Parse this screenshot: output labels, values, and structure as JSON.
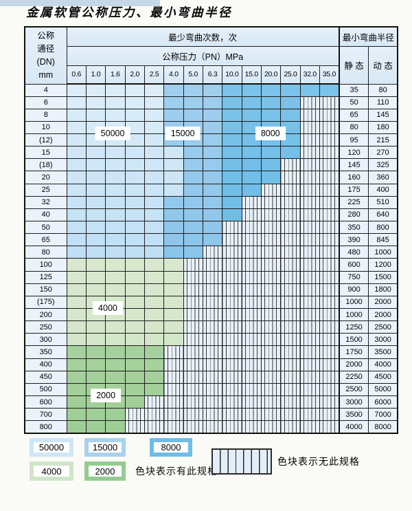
{
  "chart_data": {
    "type": "table",
    "title": "金属软管公称压力、最小弯曲半径",
    "header": {
      "dn_label_lines": [
        "公称",
        "通径",
        "(DN)",
        "mm"
      ],
      "cycles_label": "最少弯曲次数，次",
      "pressure_label": "公称压力（PN）MPa",
      "radius_label": "最小弯曲半径",
      "static_label": "静 态",
      "dynamic_label": "动 态"
    },
    "pressures": [
      "0.6",
      "1.0",
      "1.6",
      "2.0",
      "2.5",
      "4.0",
      "5.0",
      "6.3",
      "10.0",
      "15.0",
      "20.0",
      "25.0",
      "32.0",
      "35.0"
    ],
    "zones": {
      "b1": {
        "cycles": "50000",
        "color": "#cfe6f6"
      },
      "b2": {
        "cycles": "15000",
        "color": "#a7d3ee"
      },
      "b3": {
        "cycles": "8000",
        "color": "#6fbde6"
      },
      "g1": {
        "cycles": "4000",
        "color": "#cfe5c8"
      },
      "g2": {
        "cycles": "2000",
        "color": "#93cc90"
      },
      "x": {
        "cycles": "无此规格",
        "color": "striped"
      }
    },
    "rows": [
      {
        "dn": "4",
        "static": "35",
        "dynamic": "80",
        "cells": [
          "b1",
          "b1",
          "b1",
          "b1",
          "b1",
          "b2",
          "b2",
          "b2",
          "b3",
          "b3",
          "b3",
          "b3",
          "b3",
          "b3"
        ]
      },
      {
        "dn": "6",
        "static": "50",
        "dynamic": "110",
        "cells": [
          "b1",
          "b1",
          "b1",
          "b1",
          "b1",
          "b2",
          "b2",
          "b2",
          "b3",
          "b3",
          "b3",
          "b3",
          "x",
          "x"
        ]
      },
      {
        "dn": "8",
        "static": "65",
        "dynamic": "145",
        "cells": [
          "b1",
          "b1",
          "b1",
          "b1",
          "b1",
          "b2",
          "b2",
          "b2",
          "b3",
          "b3",
          "b3",
          "b3",
          "x",
          "x"
        ]
      },
      {
        "dn": "10",
        "static": "80",
        "dynamic": "180",
        "cells": [
          "b1",
          "b1",
          "b1",
          "b1",
          "b1",
          "b2",
          "b2",
          "b2",
          "b3",
          "b3",
          "b3",
          "b3",
          "x",
          "x"
        ]
      },
      {
        "dn": "(12)",
        "static": "95",
        "dynamic": "215",
        "cells": [
          "b1",
          "b1",
          "b1",
          "b1",
          "b1",
          "b2",
          "b2",
          "b2",
          "b3",
          "b3",
          "b3",
          "b3",
          "x",
          "x"
        ]
      },
      {
        "dn": "15",
        "static": "120",
        "dynamic": "270",
        "cells": [
          "b1",
          "b1",
          "b1",
          "b1",
          "b1",
          "b1",
          "b2",
          "b2",
          "b3",
          "b3",
          "b3",
          "b3",
          "x",
          "x"
        ]
      },
      {
        "dn": "(18)",
        "static": "145",
        "dynamic": "325",
        "cells": [
          "b1",
          "b1",
          "b1",
          "b1",
          "b1",
          "b1",
          "b2",
          "b2",
          "b3",
          "b3",
          "b3",
          "x",
          "x",
          "x"
        ]
      },
      {
        "dn": "20",
        "static": "160",
        "dynamic": "360",
        "cells": [
          "b1",
          "b1",
          "b1",
          "b1",
          "b1",
          "b1",
          "b2",
          "b2",
          "b3",
          "b3",
          "b3",
          "x",
          "x",
          "x"
        ]
      },
      {
        "dn": "25",
        "static": "175",
        "dynamic": "400",
        "cells": [
          "b1",
          "b1",
          "b1",
          "b1",
          "b1",
          "b1",
          "b2",
          "b2",
          "b3",
          "b3",
          "x",
          "x",
          "x",
          "x"
        ]
      },
      {
        "dn": "32",
        "static": "225",
        "dynamic": "510",
        "cells": [
          "b1",
          "b1",
          "b1",
          "b1",
          "b1",
          "b2",
          "b2",
          "b2",
          "b3",
          "x",
          "x",
          "x",
          "x",
          "x"
        ]
      },
      {
        "dn": "40",
        "static": "280",
        "dynamic": "640",
        "cells": [
          "b1",
          "b1",
          "b1",
          "b1",
          "b1",
          "b2",
          "b2",
          "b2",
          "b3",
          "x",
          "x",
          "x",
          "x",
          "x"
        ]
      },
      {
        "dn": "50",
        "static": "350",
        "dynamic": "800",
        "cells": [
          "b1",
          "b1",
          "b1",
          "b1",
          "b1",
          "b2",
          "b2",
          "b2",
          "x",
          "x",
          "x",
          "x",
          "x",
          "x"
        ]
      },
      {
        "dn": "65",
        "static": "390",
        "dynamic": "845",
        "cells": [
          "b1",
          "b1",
          "b1",
          "b1",
          "b1",
          "b2",
          "b2",
          "b2",
          "x",
          "x",
          "x",
          "x",
          "x",
          "x"
        ]
      },
      {
        "dn": "80",
        "static": "480",
        "dynamic": "1000",
        "cells": [
          "b1",
          "b1",
          "b1",
          "b1",
          "b1",
          "b2",
          "b2",
          "x",
          "x",
          "x",
          "x",
          "x",
          "x",
          "x"
        ]
      },
      {
        "dn": "100",
        "static": "600",
        "dynamic": "1200",
        "cells": [
          "g1",
          "g1",
          "g1",
          "g1",
          "g1",
          "g1",
          "x",
          "x",
          "x",
          "x",
          "x",
          "x",
          "x",
          "x"
        ]
      },
      {
        "dn": "125",
        "static": "750",
        "dynamic": "1500",
        "cells": [
          "g1",
          "g1",
          "g1",
          "g1",
          "g1",
          "g1",
          "x",
          "x",
          "x",
          "x",
          "x",
          "x",
          "x",
          "x"
        ]
      },
      {
        "dn": "150",
        "static": "900",
        "dynamic": "1800",
        "cells": [
          "g1",
          "g1",
          "g1",
          "g1",
          "g1",
          "g1",
          "x",
          "x",
          "x",
          "x",
          "x",
          "x",
          "x",
          "x"
        ]
      },
      {
        "dn": "(175)",
        "static": "1000",
        "dynamic": "2000",
        "cells": [
          "g1",
          "g1",
          "g1",
          "g1",
          "g1",
          "g1",
          "x",
          "x",
          "x",
          "x",
          "x",
          "x",
          "x",
          "x"
        ]
      },
      {
        "dn": "200",
        "static": "1000",
        "dynamic": "2000",
        "cells": [
          "g1",
          "g1",
          "g1",
          "g1",
          "g1",
          "g1",
          "x",
          "x",
          "x",
          "x",
          "x",
          "x",
          "x",
          "x"
        ]
      },
      {
        "dn": "250",
        "static": "1250",
        "dynamic": "2500",
        "cells": [
          "g1",
          "g1",
          "g1",
          "g1",
          "g1",
          "g1",
          "x",
          "x",
          "x",
          "x",
          "x",
          "x",
          "x",
          "x"
        ]
      },
      {
        "dn": "300",
        "static": "1500",
        "dynamic": "3000",
        "cells": [
          "g1",
          "g1",
          "g1",
          "g1",
          "g1",
          "g1",
          "x",
          "x",
          "x",
          "x",
          "x",
          "x",
          "x",
          "x"
        ]
      },
      {
        "dn": "350",
        "static": "1750",
        "dynamic": "3500",
        "cells": [
          "g2",
          "g2",
          "g2",
          "g2",
          "g2",
          "x",
          "x",
          "x",
          "x",
          "x",
          "x",
          "x",
          "x",
          "x"
        ]
      },
      {
        "dn": "400",
        "static": "2000",
        "dynamic": "4000",
        "cells": [
          "g2",
          "g2",
          "g2",
          "g2",
          "g2",
          "x",
          "x",
          "x",
          "x",
          "x",
          "x",
          "x",
          "x",
          "x"
        ]
      },
      {
        "dn": "450",
        "static": "2250",
        "dynamic": "4500",
        "cells": [
          "g2",
          "g2",
          "g2",
          "g2",
          "g2",
          "x",
          "x",
          "x",
          "x",
          "x",
          "x",
          "x",
          "x",
          "x"
        ]
      },
      {
        "dn": "500",
        "static": "2500",
        "dynamic": "5000",
        "cells": [
          "g2",
          "g2",
          "g2",
          "g2",
          "g2",
          "x",
          "x",
          "x",
          "x",
          "x",
          "x",
          "x",
          "x",
          "x"
        ]
      },
      {
        "dn": "600",
        "static": "3000",
        "dynamic": "6000",
        "cells": [
          "g2",
          "g2",
          "g2",
          "g2",
          "x",
          "x",
          "x",
          "x",
          "x",
          "x",
          "x",
          "x",
          "x",
          "x"
        ]
      },
      {
        "dn": "700",
        "static": "3500",
        "dynamic": "7000",
        "cells": [
          "g2",
          "g2",
          "g2",
          "x",
          "x",
          "x",
          "x",
          "x",
          "x",
          "x",
          "x",
          "x",
          "x",
          "x"
        ]
      },
      {
        "dn": "800",
        "static": "4000",
        "dynamic": "8000",
        "cells": [
          "g2",
          "g2",
          "g2",
          "x",
          "x",
          "x",
          "x",
          "x",
          "x",
          "x",
          "x",
          "x",
          "x",
          "x"
        ]
      }
    ],
    "annotations": [
      {
        "text": "50000",
        "col": 2.4,
        "row": 4
      },
      {
        "text": "15000",
        "col": 6.0,
        "row": 4
      },
      {
        "text": "8000",
        "col": 10.5,
        "row": 4
      },
      {
        "text": "4000",
        "col": 2.15,
        "row": 18
      },
      {
        "text": "2000",
        "col": 2.05,
        "row": 25
      }
    ],
    "legend": {
      "items": [
        {
          "label": "50000",
          "color": "#cfe6f6"
        },
        {
          "label": "15000",
          "color": "#a7d3ee"
        },
        {
          "label": "8000",
          "color": "#6fbde6"
        },
        {
          "label": "4000",
          "color": "#cfe5c8"
        },
        {
          "label": "2000",
          "color": "#93cc90"
        }
      ],
      "has_spec_text": "色块表示有此规格",
      "no_spec_text": "色块表示无此规格"
    }
  }
}
